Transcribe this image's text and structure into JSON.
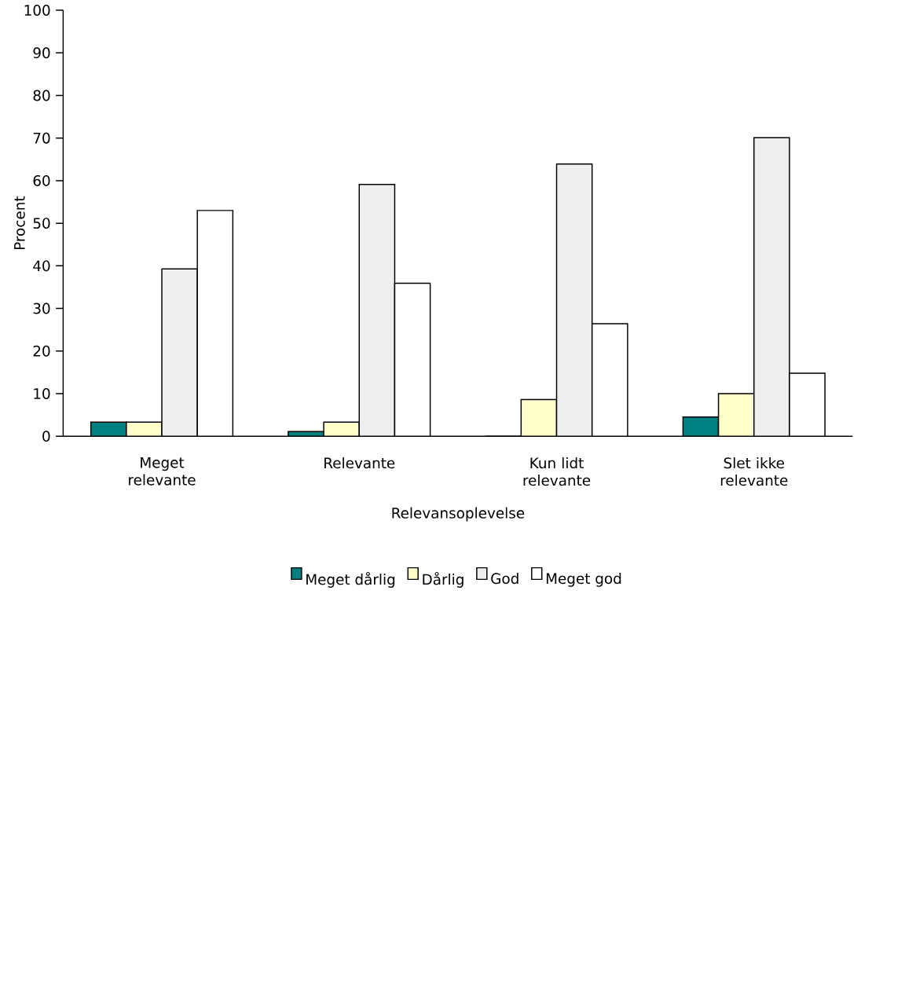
{
  "chart_data": {
    "type": "bar",
    "xlabel": "Relevansoplevelse",
    "ylabel": "Procent",
    "categories": [
      "Meget relevante",
      "Relevante",
      "Kun lidt relevante",
      "Slet ikke relevante"
    ],
    "series": [
      {
        "name": "Meget dårlig",
        "color": "#008080",
        "values": [
          3.3,
          1.1,
          0,
          4.5
        ]
      },
      {
        "name": "Dårlig",
        "color": "#ffffcc",
        "values": [
          3.3,
          3.3,
          8.6,
          10.0
        ]
      },
      {
        "name": "God",
        "color": "#eeeeee",
        "values": [
          39.3,
          59.1,
          63.9,
          70.1
        ]
      },
      {
        "name": "Meget god",
        "color": "#ffffff",
        "values": [
          53.0,
          35.9,
          26.4,
          14.8
        ]
      }
    ],
    "ylim": [
      0,
      100
    ],
    "yticks": [
      0,
      10,
      20,
      30,
      40,
      50,
      60,
      70,
      80,
      90,
      100
    ],
    "grid": false,
    "legend": "bottom"
  }
}
